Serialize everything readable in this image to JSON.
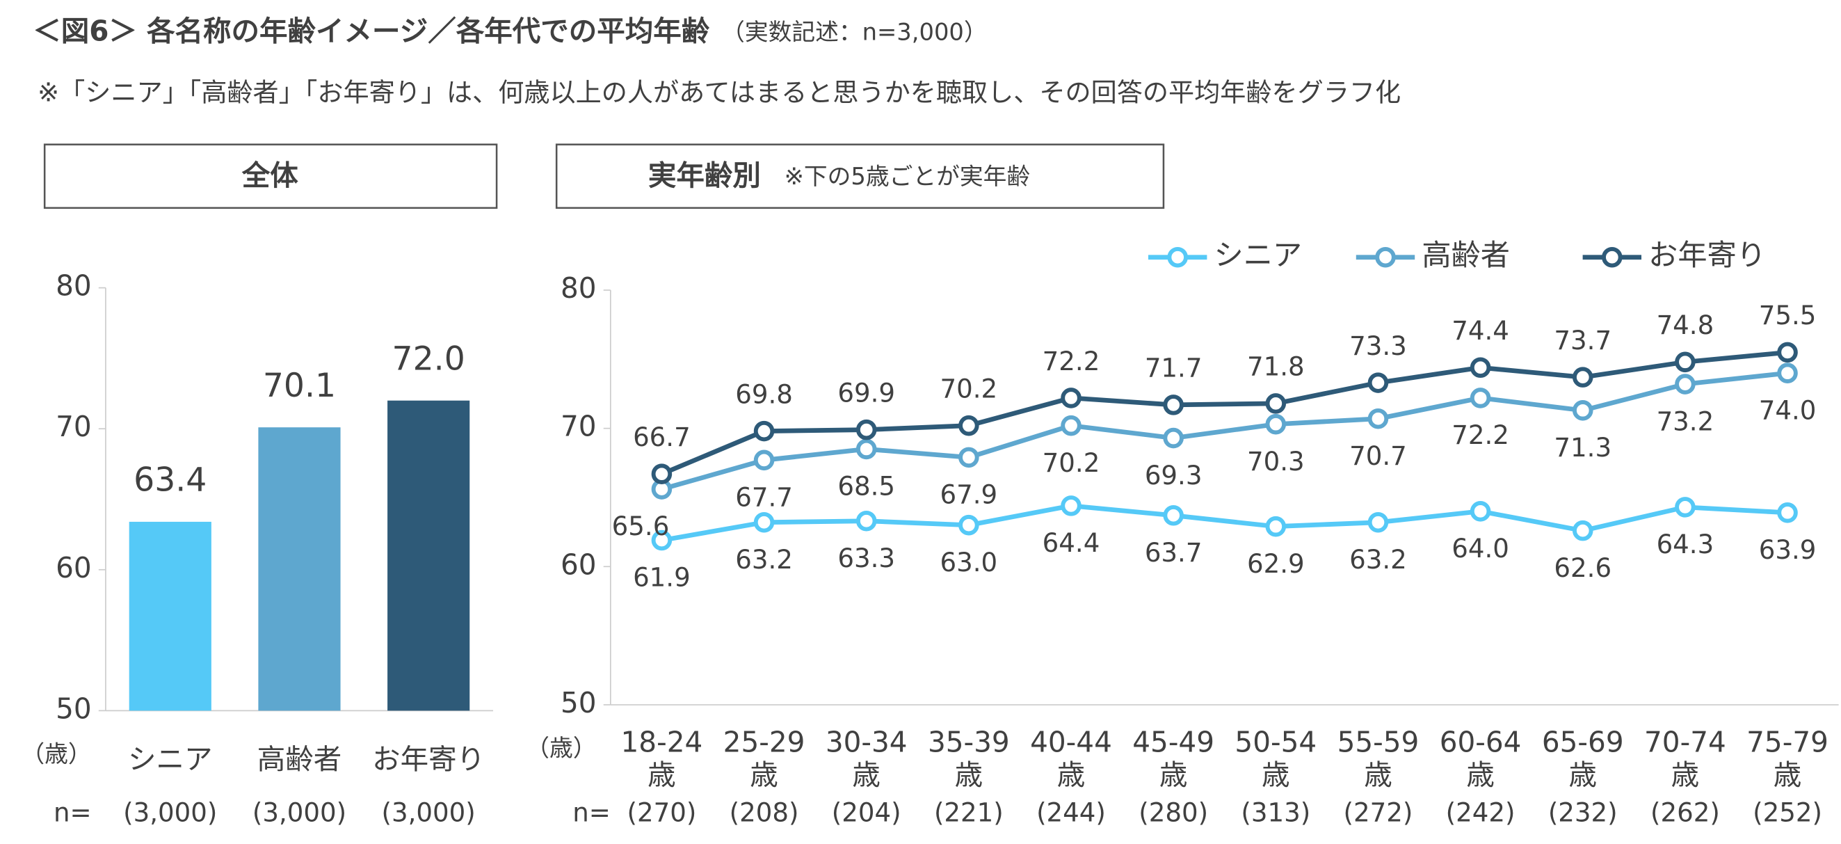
{
  "header": {
    "title": "＜図6＞ 各名称の年齢イメージ／各年代での平均年齢",
    "title_note": "（実数記述：n=3,000）",
    "subtitle": "※「シニア」「高齢者」「お年寄り」は、何歳以上の人があてはまると思うかを聴取し、その回答の平均年齢をグラフ化"
  },
  "chart_data": [
    {
      "type": "bar",
      "title": "全体",
      "y_unit": "（歳）",
      "categories": [
        "シニア",
        "高齢者",
        "お年寄り"
      ],
      "values": [
        63.4,
        70.1,
        72.0
      ],
      "value_labels": [
        "63.4",
        "70.1",
        "72.0"
      ],
      "colors": [
        "#55c9f7",
        "#5ea7cf",
        "#2e5a78"
      ],
      "ylim": [
        50,
        80
      ],
      "yticks": [
        50,
        60,
        70,
        80
      ],
      "grid": false,
      "n_label": "n=",
      "n_values": [
        "(3,000)",
        "(3,000)",
        "(3,000)"
      ]
    },
    {
      "type": "line",
      "title": "実年齢別",
      "title_note": "※下の5歳ごとが実年齢",
      "y_unit": "（歳）",
      "categories": [
        "18-24歳",
        "25-29歳",
        "30-34歳",
        "35-39歳",
        "40-44歳",
        "45-49歳",
        "50-54歳",
        "55-59歳",
        "60-64歳",
        "65-69歳",
        "70-74歳",
        "75-79歳"
      ],
      "series": [
        {
          "name": "シニア",
          "color": "#55c9f7",
          "label_color": "#2ba6df",
          "values": [
            61.9,
            63.2,
            63.3,
            63.0,
            64.4,
            63.7,
            62.9,
            63.2,
            64.0,
            62.6,
            64.3,
            63.9
          ],
          "value_labels": [
            "61.9",
            "63.2",
            "63.3",
            "63.0",
            "64.4",
            "63.7",
            "62.9",
            "63.2",
            "64.0",
            "62.6",
            "64.3",
            "63.9"
          ]
        },
        {
          "name": "高齢者",
          "color": "#5ea7cf",
          "label_color": "#3a6a8a",
          "values": [
            65.6,
            67.7,
            68.5,
            67.9,
            70.2,
            69.3,
            70.3,
            70.7,
            72.2,
            71.3,
            73.2,
            74.0
          ],
          "value_labels": [
            "65.6",
            "67.7",
            "68.5",
            "67.9",
            "70.2",
            "69.3",
            "70.3",
            "70.7",
            "72.2",
            "71.3",
            "73.2",
            "74.0"
          ]
        },
        {
          "name": "お年寄り",
          "color": "#2e5a78",
          "label_color": "#3a6a8a",
          "values": [
            66.7,
            69.8,
            69.9,
            70.2,
            72.2,
            71.7,
            71.8,
            73.3,
            74.4,
            73.7,
            74.8,
            75.5
          ],
          "value_labels": [
            "66.7",
            "69.8",
            "69.9",
            "70.2",
            "72.2",
            "71.7",
            "71.8",
            "73.3",
            "74.4",
            "73.7",
            "74.8",
            "75.5"
          ]
        }
      ],
      "ylim": [
        50,
        80
      ],
      "yticks": [
        50,
        60,
        70,
        80
      ],
      "grid": false,
      "legend": "top-right",
      "n_label": "n=",
      "n_values": [
        "(270)",
        "(208)",
        "(204)",
        "(221)",
        "(244)",
        "(280)",
        "(313)",
        "(272)",
        "(242)",
        "(232)",
        "(262)",
        "(252)"
      ]
    }
  ]
}
